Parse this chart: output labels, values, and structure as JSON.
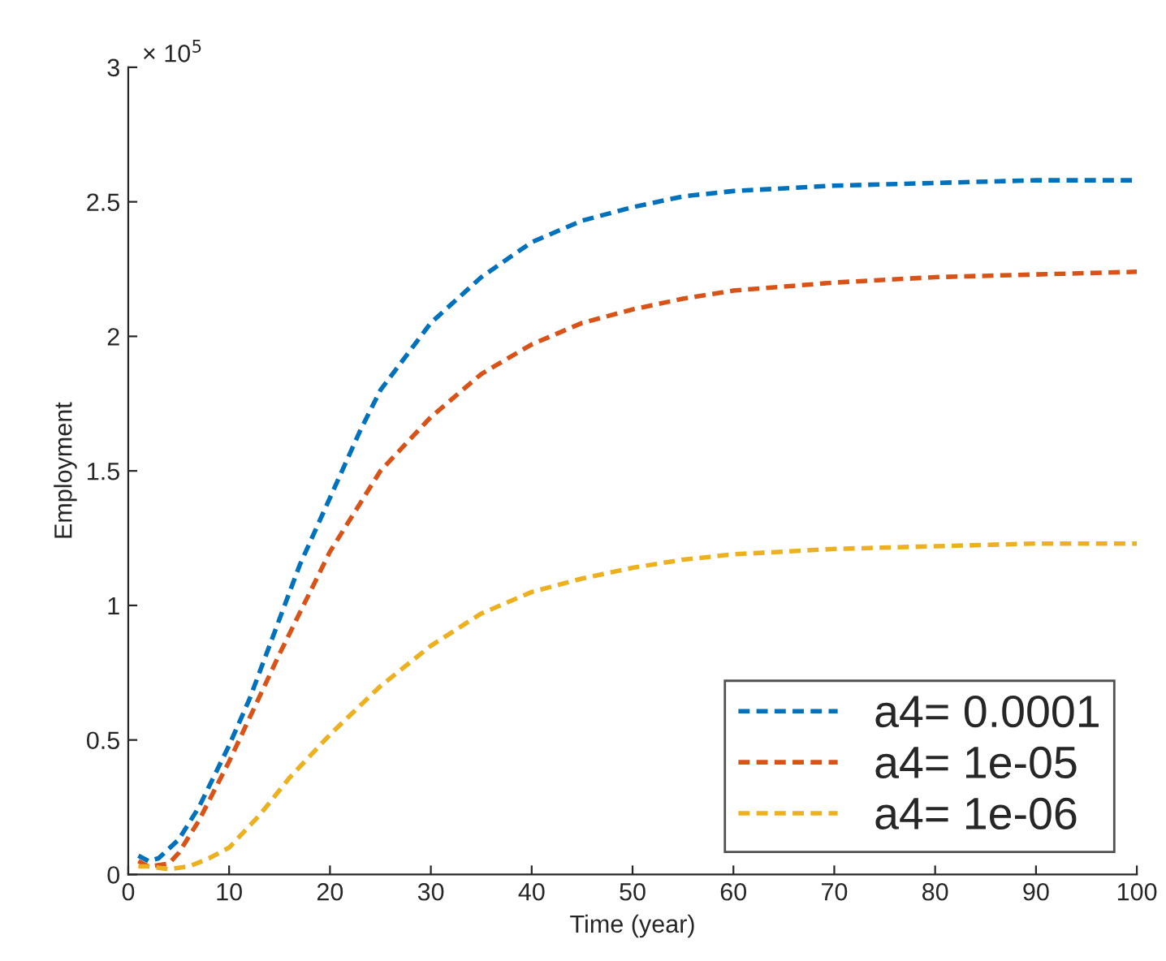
{
  "chart_data": {
    "type": "line",
    "xlabel": "Time (year)",
    "ylabel": "Employment",
    "annotations": [
      "× 10$^{5}$"
    ],
    "xlim": [
      0,
      100
    ],
    "xticks": [
      0,
      10,
      20,
      30,
      40,
      50,
      60,
      70,
      80,
      90,
      100
    ],
    "ylim": [
      0,
      3
    ],
    "yticks": [
      0,
      0.5,
      1,
      1.5,
      2,
      2.5,
      3
    ],
    "grid": false,
    "legend": "bottom right",
    "line_style": "dashed",
    "marker": "none",
    "series": [
      {
        "name": "a4= 0.0001",
        "color": "#0072bd",
        "x": [
          1,
          2,
          3,
          5,
          7,
          10,
          12,
          14,
          17,
          20,
          23,
          25,
          28,
          30,
          35,
          40,
          45,
          50,
          55,
          60,
          70,
          80,
          90,
          100
        ],
        "values": [
          0.07,
          0.05,
          0.06,
          0.13,
          0.25,
          0.48,
          0.65,
          0.85,
          1.15,
          1.4,
          1.65,
          1.8,
          1.95,
          2.05,
          2.22,
          2.35,
          2.43,
          2.48,
          2.52,
          2.54,
          2.56,
          2.57,
          2.58,
          2.58
        ]
      },
      {
        "name": "a4= 1e-05",
        "color": "#d95319",
        "x": [
          1,
          2,
          4,
          5,
          7,
          10,
          12,
          15,
          20,
          25,
          30,
          35,
          40,
          45,
          50,
          55,
          60,
          70,
          80,
          90,
          100
        ],
        "values": [
          0.05,
          0.03,
          0.04,
          0.08,
          0.2,
          0.42,
          0.58,
          0.82,
          1.2,
          1.5,
          1.7,
          1.86,
          1.97,
          2.05,
          2.1,
          2.14,
          2.17,
          2.2,
          2.22,
          2.23,
          2.24
        ]
      },
      {
        "name": "a4= 1e-06",
        "color": "#edb120",
        "x": [
          1,
          2,
          4,
          6,
          8,
          10,
          13,
          16,
          20,
          25,
          30,
          35,
          40,
          45,
          50,
          55,
          60,
          70,
          80,
          90,
          100
        ],
        "values": [
          0.03,
          0.03,
          0.02,
          0.03,
          0.06,
          0.1,
          0.22,
          0.36,
          0.52,
          0.7,
          0.85,
          0.97,
          1.05,
          1.1,
          1.14,
          1.17,
          1.19,
          1.21,
          1.22,
          1.23,
          1.23
        ]
      }
    ]
  }
}
